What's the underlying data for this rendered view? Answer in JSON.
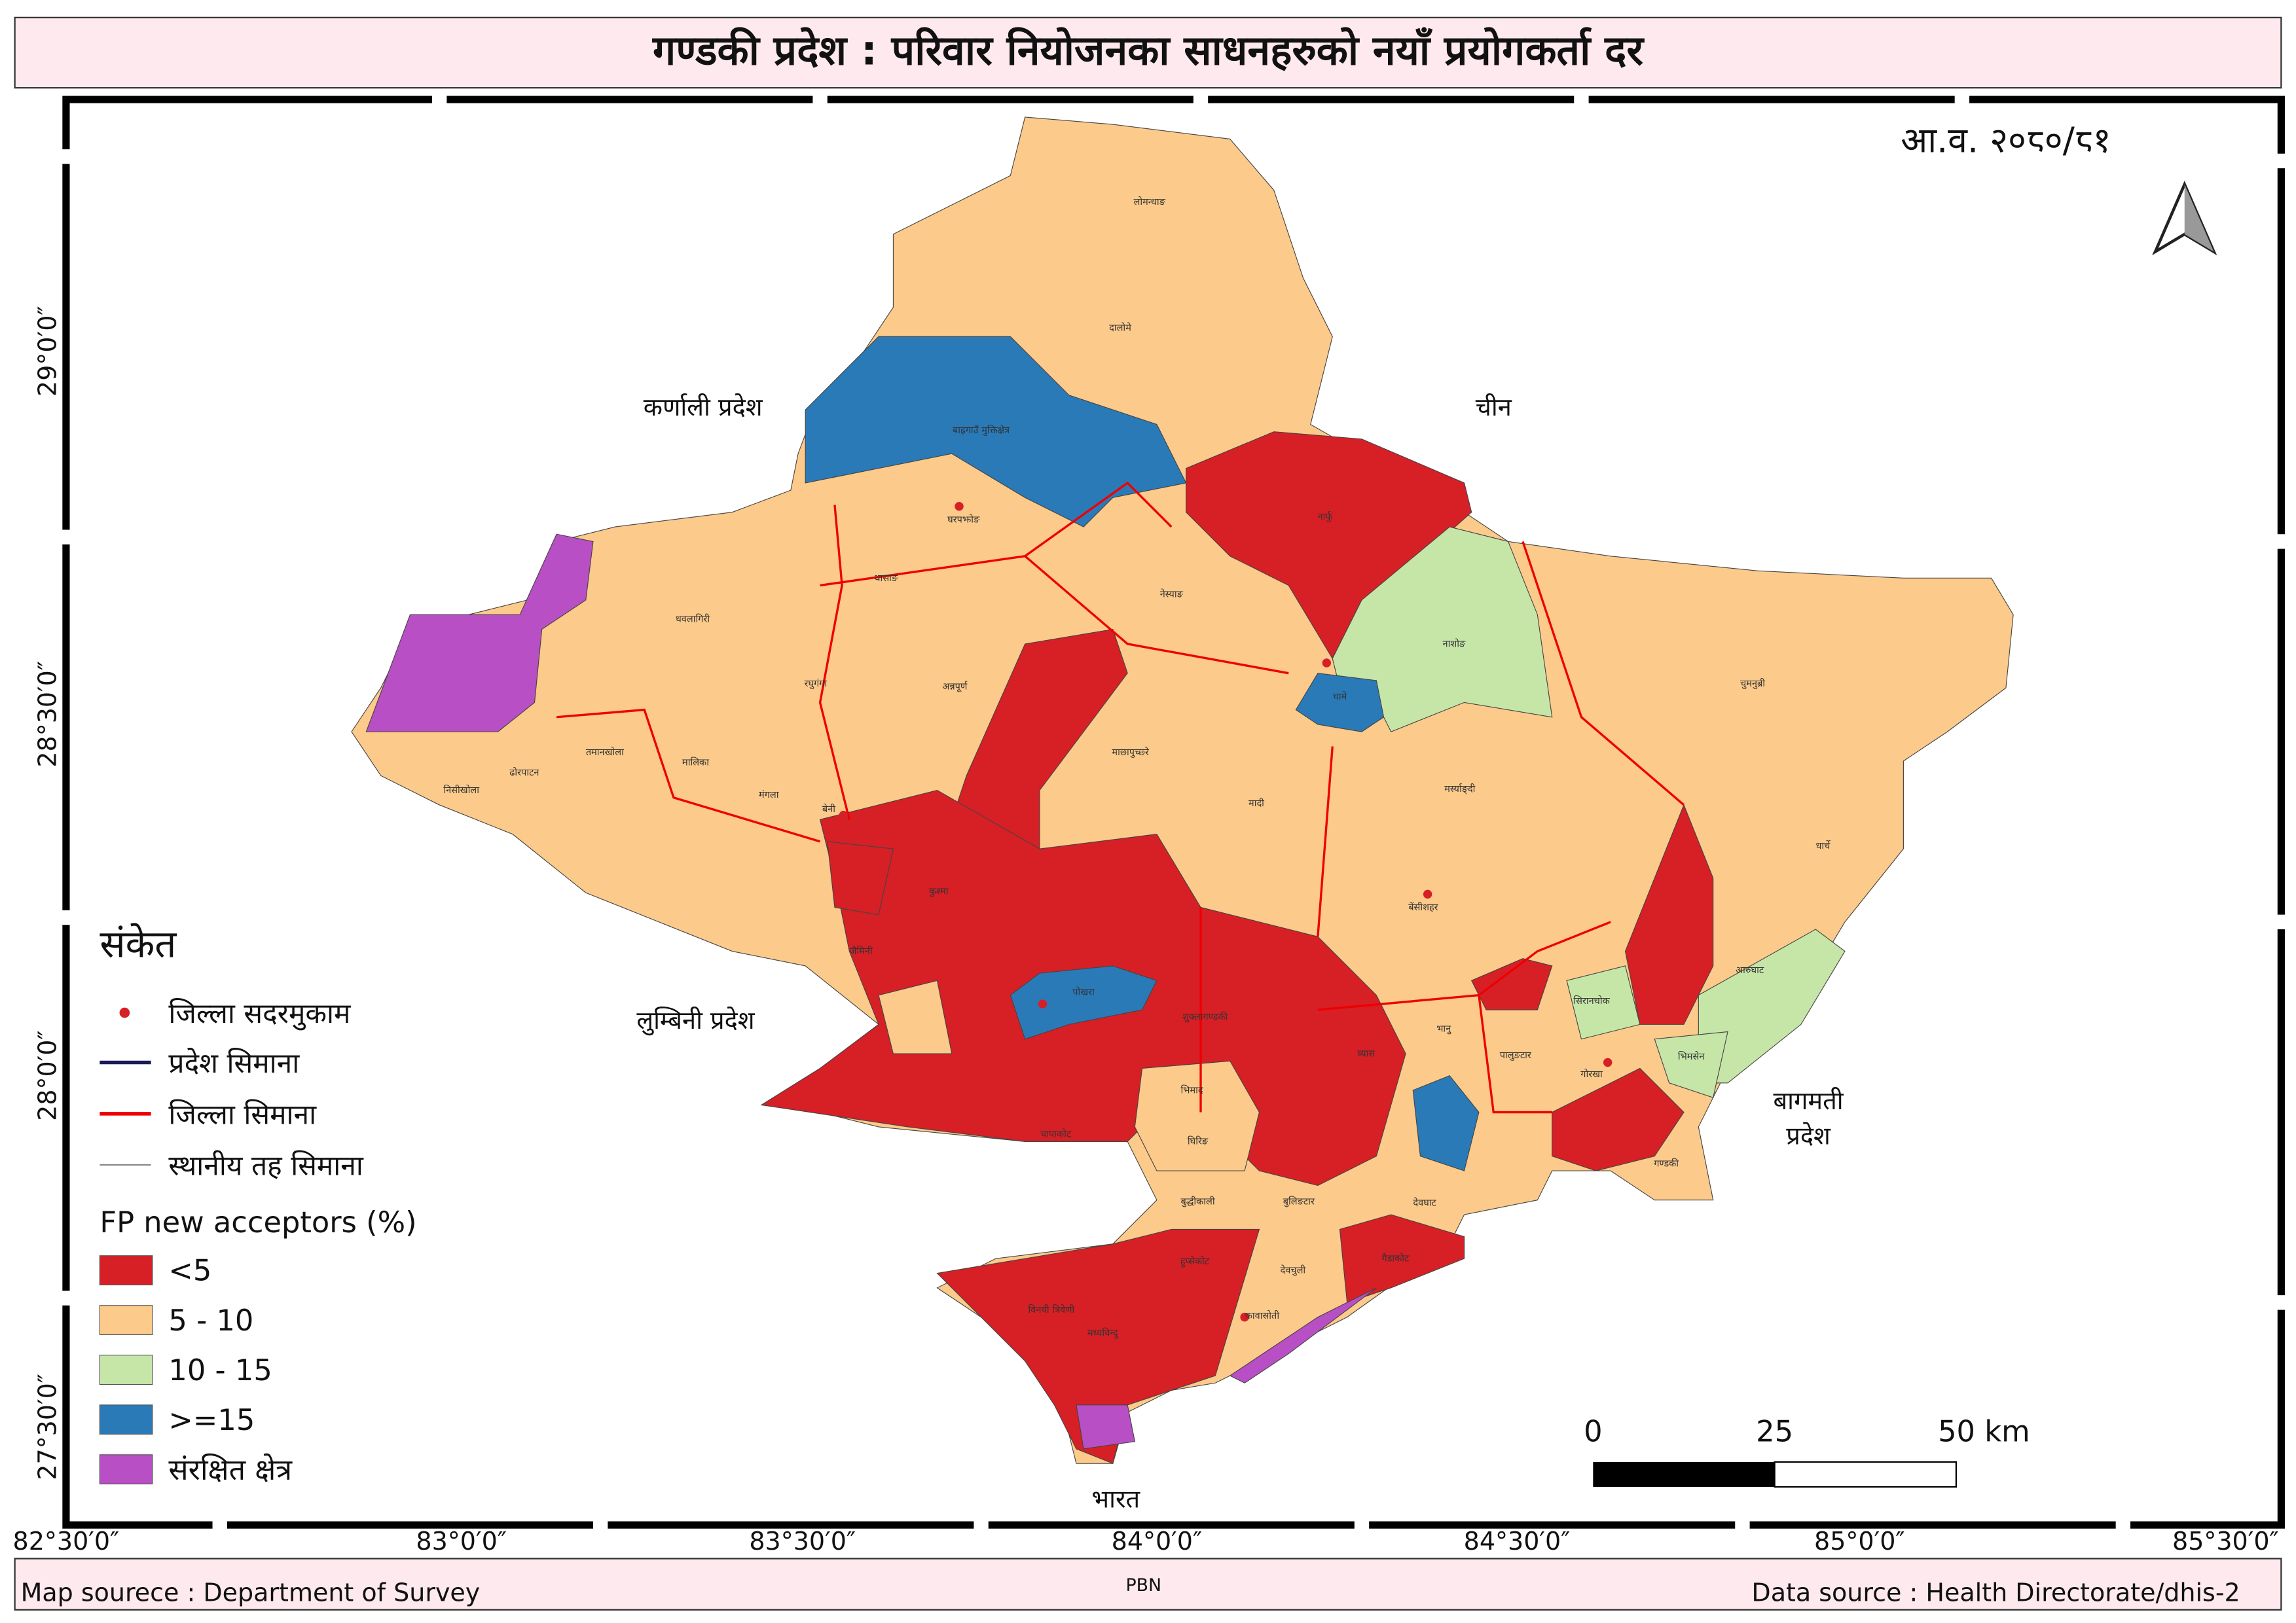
{
  "header": {
    "title": "गण्डकी प्रदेश : परिवार नियोजनका साधनहरुको नयाँ प्रयोगकर्ता दर",
    "fiscal_year": "आ.व. २०८०/८१"
  },
  "neighbors": {
    "karnali": "कर्णाली प्रदेश",
    "china": "चीन",
    "lumbini": "लुम्बिनी प्रदेश",
    "bagmati": [
      "बागमती",
      "प्रदेश"
    ],
    "india": "भारत"
  },
  "local_labels": [
    "लोमन्थाङ",
    "दालोमे",
    "बाह्रगाउँ मुक्तिक्षेत्र",
    "घरपझोङ",
    "थासाङ",
    "नेस्याङ",
    "नार्फु",
    "नाशोङ",
    "चुमनुब्री",
    "धवलागिरी",
    "रघुगंगा",
    "अन्नपूर्ण",
    "माछापुच्छ्रे",
    "मादी",
    "धार्चे",
    "आरुघाट",
    "गण्डकी",
    "निसीखोला",
    "ढोरपाटन",
    "तमानखोला",
    "मालिका",
    "मंगला",
    "बेनी",
    "जैमिनी",
    "कुश्मा",
    "पोखरा",
    "भानु",
    "गोरखा",
    "भिमसेन",
    "सिरानचोक",
    "पालुङटार",
    "शुक्लागण्डकी",
    "व्यास",
    "बुलिङटार",
    "देवचुली",
    "गैडाकोट",
    "कावासोती",
    "विनयी त्रिवेणी",
    "मध्यविन्दु",
    "हुप्सेकोट",
    "चापाकोट",
    "भिमाद",
    "घिरिङ",
    "देवघाट",
    "बुद्धीकाली",
    "बेंसीशहर",
    "मर्स्याङ्दी",
    "चामे"
  ],
  "legend": {
    "heading": "संकेत",
    "symbols": [
      "जिल्ला सदरमुकाम",
      "प्रदेश सिमाना",
      "जिल्ला सिमाना",
      "स्थानीय तह सिमाना"
    ],
    "class_title": "FP new acceptors (%)",
    "classes": [
      {
        "label": "<5",
        "color": "#d71f26"
      },
      {
        "label": "5 - 10",
        "color": "#fcca8a"
      },
      {
        "label": "10 - 15",
        "color": "#c6e6a8"
      },
      {
        "label": ">=15",
        "color": "#2a7ab8"
      },
      {
        "label": "संरक्षित क्षेत्र",
        "color": "#b84fc4"
      }
    ]
  },
  "graticule": {
    "x": [
      "82°30′0″",
      "83°0′0″",
      "83°30′0″",
      "84°0′0″",
      "84°30′0″",
      "85°0′0″",
      "85°30′0″"
    ],
    "y": [
      "29°0′0″",
      "28°30′0″",
      "28°0′0″",
      "27°30′0″"
    ]
  },
  "scale_bar": [
    "0",
    "25",
    "50 km"
  ],
  "footer": {
    "map_source": "Map sourece : Department of Survey",
    "center": "PBN",
    "data_source": "Data source : Health Directorate/dhis-2"
  }
}
